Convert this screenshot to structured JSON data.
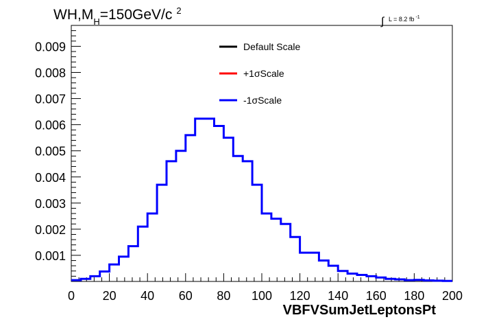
{
  "chart_data": {
    "type": "line",
    "title_main": "WH,M",
    "title_sub": "H",
    "title_rest": "=150GeV/c",
    "title_sup": "2",
    "lumi_label": "L = 8.2 fb",
    "lumi_sup": "-1",
    "xlabel": "VBFVSumJetLeptonsPt",
    "xlim": [
      0,
      200
    ],
    "ylim": [
      0,
      0.0098
    ],
    "x_ticks": [
      "0",
      "20",
      "40",
      "60",
      "80",
      "100",
      "120",
      "140",
      "160",
      "180",
      "200"
    ],
    "y_ticks": [
      "0.001",
      "0.002",
      "0.003",
      "0.004",
      "0.005",
      "0.006",
      "0.007",
      "0.008",
      "0.009"
    ],
    "bin_width": 5,
    "legend": {
      "placement": "top-right",
      "entries": [
        {
          "label": "Default Scale",
          "color": "#000000"
        },
        {
          "label": "+1σScale",
          "color": "#ff0000"
        },
        {
          "label": "-1σScale",
          "color": "#0000ff"
        }
      ]
    },
    "series": [
      {
        "name": "-1σScale",
        "color": "#0000ff",
        "values": [
          5e-05,
          0.0001,
          0.0002,
          0.00038,
          0.00065,
          0.00095,
          0.00135,
          0.0021,
          0.0026,
          0.0037,
          0.0046,
          0.005,
          0.0056,
          0.00623,
          0.00623,
          0.00595,
          0.0055,
          0.0048,
          0.0046,
          0.0037,
          0.0026,
          0.0024,
          0.0022,
          0.0017,
          0.0011,
          0.0011,
          0.0008,
          0.0006,
          0.0004,
          0.0003,
          0.00025,
          0.0002,
          0.00015,
          0.0001,
          8e-05,
          5e-05,
          6e-05,
          4e-05,
          3e-05,
          2e-05
        ]
      }
    ]
  }
}
